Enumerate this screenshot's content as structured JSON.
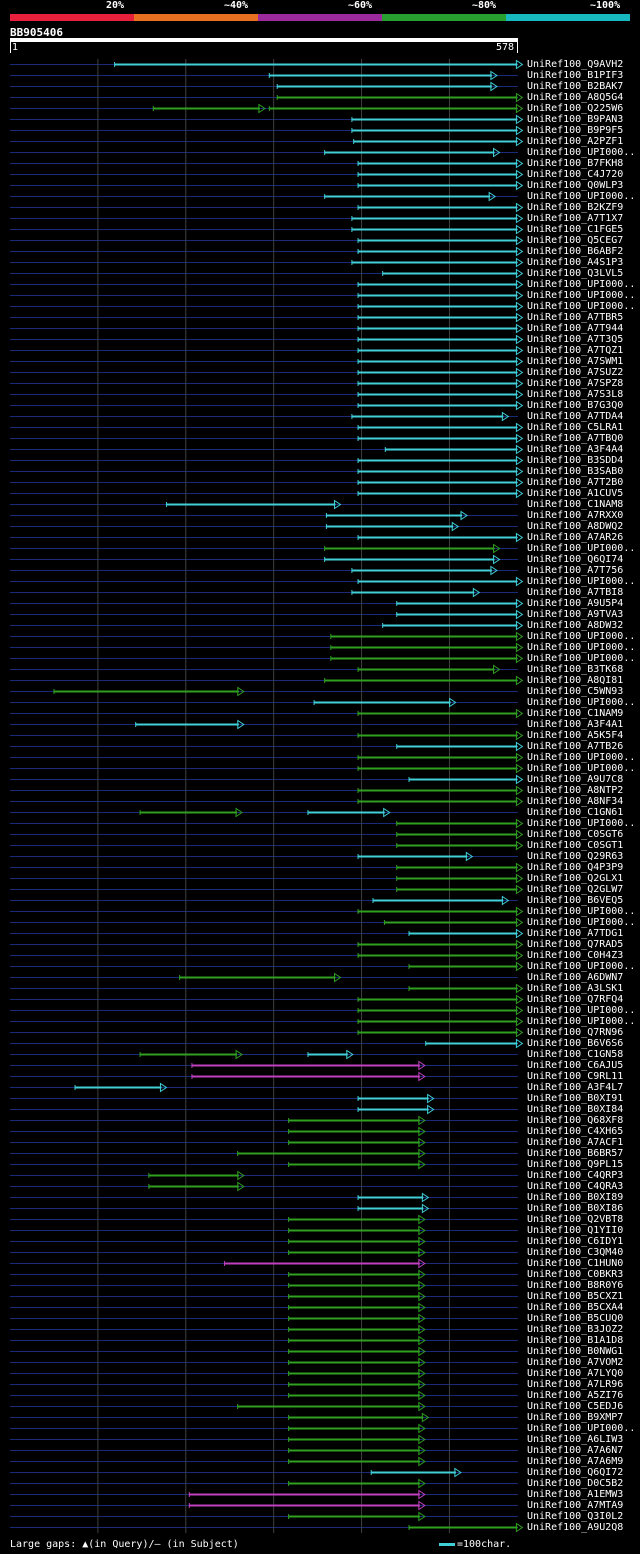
{
  "legend": {
    "items": [
      {
        "label": "20%",
        "color": "#e8203c"
      },
      {
        "label": "~40%",
        "color": "#e87020"
      },
      {
        "label": "~60%",
        "color": "#9c2a9c"
      },
      {
        "label": "~80%",
        "color": "#28a030"
      },
      {
        "label": "~100%",
        "color": "#18b8c0"
      }
    ]
  },
  "query": {
    "id": "BB905406",
    "start_label": "1",
    "end_label": "578",
    "length": 578
  },
  "colors": {
    "cyan": "#40d0d8",
    "green": "#30a020",
    "magenta": "#c040c0",
    "track": "#1a2a7a",
    "grid": "#404040"
  },
  "grid_positions": [
    100,
    200,
    300,
    400,
    500
  ],
  "footer": {
    "gaps_text": "Large gaps: ▲(in Query)/— (in Subject)",
    "scale_text": "=100char."
  },
  "hits": [
    {
      "name": "UniRef100_Q9AVH2",
      "segs": [
        [
          119,
          583,
          "c"
        ]
      ]
    },
    {
      "name": "UniRef100_B1PIF3",
      "segs": [
        [
          295,
          554,
          "c"
        ]
      ]
    },
    {
      "name": "UniRef100_B2BAK7",
      "segs": [
        [
          304,
          554,
          "c"
        ]
      ]
    },
    {
      "name": "UniRef100_A8Q5G4",
      "segs": [
        [
          304,
          583,
          "g"
        ]
      ]
    },
    {
      "name": "UniRef100_Q225W6",
      "segs": [
        [
          163,
          290,
          "g"
        ],
        [
          295,
          583,
          "g"
        ]
      ]
    },
    {
      "name": "UniRef100_B9PAN3",
      "segs": [
        [
          389,
          583,
          "c"
        ]
      ]
    },
    {
      "name": "UniRef100_B9P9F5",
      "segs": [
        [
          389,
          583,
          "c"
        ]
      ]
    },
    {
      "name": "UniRef100_A2PZF1",
      "segs": [
        [
          391,
          583,
          "c"
        ]
      ]
    },
    {
      "name": "UniRef100_UPI000..",
      "segs": [
        [
          358,
          557,
          "c"
        ]
      ]
    },
    {
      "name": "UniRef100_B7FKH8",
      "segs": [
        [
          396,
          583,
          "c"
        ]
      ]
    },
    {
      "name": "UniRef100_C4J720",
      "segs": [
        [
          396,
          583,
          "c"
        ]
      ]
    },
    {
      "name": "UniRef100_Q0WLP3",
      "segs": [
        [
          396,
          583,
          "c"
        ]
      ]
    },
    {
      "name": "UniRef100_UPI000..",
      "segs": [
        [
          358,
          552,
          "c"
        ]
      ]
    },
    {
      "name": "UniRef100_B2KZF9",
      "segs": [
        [
          396,
          583,
          "c"
        ]
      ]
    },
    {
      "name": "UniRef100_A7T1X7",
      "segs": [
        [
          389,
          583,
          "c"
        ]
      ]
    },
    {
      "name": "UniRef100_C1FGE5",
      "segs": [
        [
          389,
          583,
          "c"
        ]
      ]
    },
    {
      "name": "UniRef100_Q5CEG7",
      "segs": [
        [
          396,
          583,
          "c"
        ]
      ]
    },
    {
      "name": "UniRef100_B6ABF2",
      "segs": [
        [
          396,
          583,
          "c"
        ]
      ]
    },
    {
      "name": "UniRef100_A4S1P3",
      "segs": [
        [
          389,
          583,
          "c"
        ]
      ]
    },
    {
      "name": "UniRef100_Q3LVL5",
      "segs": [
        [
          424,
          583,
          "c"
        ]
      ]
    },
    {
      "name": "UniRef100_UPI000..",
      "segs": [
        [
          396,
          583,
          "c"
        ]
      ]
    },
    {
      "name": "UniRef100_UPI000..",
      "segs": [
        [
          396,
          583,
          "c"
        ]
      ]
    },
    {
      "name": "UniRef100_UPI000..",
      "segs": [
        [
          396,
          583,
          "c"
        ]
      ]
    },
    {
      "name": "UniRef100_A7TBR5",
      "segs": [
        [
          396,
          583,
          "c"
        ]
      ]
    },
    {
      "name": "UniRef100_A7T944",
      "segs": [
        [
          396,
          583,
          "c"
        ]
      ]
    },
    {
      "name": "UniRef100_A7T3Q5",
      "segs": [
        [
          396,
          583,
          "c"
        ]
      ]
    },
    {
      "name": "UniRef100_A7TQZ1",
      "segs": [
        [
          396,
          583,
          "c"
        ]
      ]
    },
    {
      "name": "UniRef100_A7SWM1",
      "segs": [
        [
          396,
          583,
          "c"
        ]
      ]
    },
    {
      "name": "UniRef100_A7SUZ2",
      "segs": [
        [
          396,
          583,
          "c"
        ]
      ]
    },
    {
      "name": "UniRef100_A7SPZ8",
      "segs": [
        [
          396,
          583,
          "c"
        ]
      ]
    },
    {
      "name": "UniRef100_A7S3L8",
      "segs": [
        [
          396,
          583,
          "c"
        ]
      ]
    },
    {
      "name": "UniRef100_B7G3Q0",
      "segs": [
        [
          396,
          583,
          "c"
        ]
      ]
    },
    {
      "name": "UniRef100_A7TDA4",
      "segs": [
        [
          389,
          567,
          "c"
        ]
      ]
    },
    {
      "name": "UniRef100_C5LRA1",
      "segs": [
        [
          396,
          583,
          "c"
        ]
      ]
    },
    {
      "name": "UniRef100_A7TBQ0",
      "segs": [
        [
          396,
          583,
          "c"
        ]
      ]
    },
    {
      "name": "UniRef100_A3F4A4",
      "segs": [
        [
          427,
          583,
          "c"
        ]
      ]
    },
    {
      "name": "UniRef100_B3SDD4",
      "segs": [
        [
          396,
          583,
          "c"
        ]
      ]
    },
    {
      "name": "UniRef100_B3SAB0",
      "segs": [
        [
          396,
          583,
          "c"
        ]
      ]
    },
    {
      "name": "UniRef100_A7T2B0",
      "segs": [
        [
          396,
          583,
          "c"
        ]
      ]
    },
    {
      "name": "UniRef100_A1CUV5",
      "segs": [
        [
          396,
          583,
          "c"
        ]
      ]
    },
    {
      "name": "UniRef100_C1NAM8",
      "segs": [
        [
          178,
          376,
          "c"
        ]
      ]
    },
    {
      "name": "UniRef100_A7RXX0",
      "segs": [
        [
          360,
          520,
          "c"
        ]
      ]
    },
    {
      "name": "UniRef100_A8DWQ2",
      "segs": [
        [
          360,
          510,
          "c"
        ]
      ]
    },
    {
      "name": "UniRef100_A7AR26",
      "segs": [
        [
          396,
          583,
          "c"
        ]
      ]
    },
    {
      "name": "UniRef100_UPI000..",
      "segs": [
        [
          358,
          557,
          "g"
        ]
      ]
    },
    {
      "name": "UniRef100_Q6QI74",
      "segs": [
        [
          358,
          557,
          "c"
        ]
      ]
    },
    {
      "name": "UniRef100_A7T756",
      "segs": [
        [
          389,
          554,
          "c"
        ]
      ]
    },
    {
      "name": "UniRef100_UPI000..",
      "segs": [
        [
          396,
          583,
          "c"
        ]
      ]
    },
    {
      "name": "UniRef100_A7TBI8",
      "segs": [
        [
          389,
          534,
          "c"
        ]
      ]
    },
    {
      "name": "UniRef100_A9U5P4",
      "segs": [
        [
          440,
          583,
          "c"
        ]
      ]
    },
    {
      "name": "UniRef100_A9TVA3",
      "segs": [
        [
          440,
          583,
          "c"
        ]
      ]
    },
    {
      "name": "UniRef100_A8DW32",
      "segs": [
        [
          424,
          583,
          "c"
        ]
      ]
    },
    {
      "name": "UniRef100_UPI000..",
      "segs": [
        [
          365,
          583,
          "g"
        ]
      ]
    },
    {
      "name": "UniRef100_UPI000..",
      "segs": [
        [
          365,
          583,
          "g"
        ]
      ]
    },
    {
      "name": "UniRef100_UPI000..",
      "segs": [
        [
          365,
          583,
          "g"
        ]
      ]
    },
    {
      "name": "UniRef100_B3TK68",
      "segs": [
        [
          396,
          557,
          "g"
        ]
      ]
    },
    {
      "name": "UniRef100_A8QI81",
      "segs": [
        [
          358,
          583,
          "g"
        ]
      ]
    },
    {
      "name": "UniRef100_C5WN93",
      "segs": [
        [
          50,
          266,
          "g"
        ]
      ]
    },
    {
      "name": "UniRef100_UPI000..",
      "segs": [
        [
          346,
          507,
          "c"
        ]
      ]
    },
    {
      "name": "UniRef100_C1NAM9",
      "segs": [
        [
          396,
          583,
          "g"
        ]
      ]
    },
    {
      "name": "UniRef100_A3F4A1",
      "segs": [
        [
          143,
          266,
          "c"
        ]
      ]
    },
    {
      "name": "UniRef100_A5K5F4",
      "segs": [
        [
          396,
          583,
          "g"
        ]
      ]
    },
    {
      "name": "UniRef100_A7TB26",
      "segs": [
        [
          440,
          583,
          "c"
        ]
      ]
    },
    {
      "name": "UniRef100_UPI000..",
      "segs": [
        [
          396,
          583,
          "g"
        ]
      ]
    },
    {
      "name": "UniRef100_UPI000..",
      "segs": [
        [
          396,
          583,
          "g"
        ]
      ]
    },
    {
      "name": "UniRef100_A9U7C8",
      "segs": [
        [
          454,
          583,
          "c"
        ]
      ]
    },
    {
      "name": "UniRef100_A8NTP2",
      "segs": [
        [
          396,
          583,
          "g"
        ]
      ]
    },
    {
      "name": "UniRef100_A8NF34",
      "segs": [
        [
          396,
          583,
          "g"
        ]
      ]
    },
    {
      "name": "UniRef100_C1GN61",
      "segs": [
        [
          148,
          264,
          "g"
        ],
        [
          339,
          432,
          "c"
        ]
      ]
    },
    {
      "name": "UniRef100_UPI000..",
      "segs": [
        [
          440,
          583,
          "g"
        ]
      ]
    },
    {
      "name": "UniRef100_C0SGT6",
      "segs": [
        [
          440,
          583,
          "g"
        ]
      ]
    },
    {
      "name": "UniRef100_C0SGT1",
      "segs": [
        [
          440,
          583,
          "g"
        ]
      ]
    },
    {
      "name": "UniRef100_Q29R63",
      "segs": [
        [
          396,
          526,
          "c"
        ]
      ]
    },
    {
      "name": "UniRef100_Q4P3P9",
      "segs": [
        [
          440,
          583,
          "g"
        ]
      ]
    },
    {
      "name": "UniRef100_Q2GLX1",
      "segs": [
        [
          440,
          583,
          "g"
        ]
      ]
    },
    {
      "name": "UniRef100_Q2GLW7",
      "segs": [
        [
          440,
          583,
          "g"
        ]
      ]
    },
    {
      "name": "UniRef100_B6VEQ5",
      "segs": [
        [
          413,
          567,
          "c"
        ]
      ]
    },
    {
      "name": "UniRef100_UPI000..",
      "segs": [
        [
          396,
          583,
          "g"
        ]
      ]
    },
    {
      "name": "UniRef100_UPI000..",
      "segs": [
        [
          426,
          583,
          "g"
        ]
      ]
    },
    {
      "name": "UniRef100_A7TDG1",
      "segs": [
        [
          454,
          583,
          "c"
        ]
      ]
    },
    {
      "name": "UniRef100_Q7RAD5",
      "segs": [
        [
          396,
          583,
          "g"
        ]
      ]
    },
    {
      "name": "UniRef100_C0H4Z3",
      "segs": [
        [
          396,
          583,
          "g"
        ]
      ]
    },
    {
      "name": "UniRef100_UPI000..",
      "segs": [
        [
          454,
          583,
          "g"
        ]
      ]
    },
    {
      "name": "UniRef100_A6DWN7",
      "segs": [
        [
          193,
          376,
          "g"
        ]
      ]
    },
    {
      "name": "UniRef100_A3LSK1",
      "segs": [
        [
          454,
          583,
          "g"
        ]
      ]
    },
    {
      "name": "UniRef100_Q7RFQ4",
      "segs": [
        [
          396,
          583,
          "g"
        ]
      ]
    },
    {
      "name": "UniRef100_UPI000..",
      "segs": [
        [
          396,
          583,
          "g"
        ]
      ]
    },
    {
      "name": "UniRef100_UPI000..",
      "segs": [
        [
          396,
          583,
          "g"
        ]
      ]
    },
    {
      "name": "UniRef100_Q7RN96",
      "segs": [
        [
          396,
          583,
          "g"
        ]
      ]
    },
    {
      "name": "UniRef100_B6V6S6",
      "segs": [
        [
          473,
          583,
          "c"
        ]
      ]
    },
    {
      "name": "UniRef100_C1GN58",
      "segs": [
        [
          148,
          264,
          "g"
        ],
        [
          339,
          390,
          "c"
        ]
      ]
    },
    {
      "name": "UniRef100_C6AJU5",
      "segs": [
        [
          207,
          472,
          "m"
        ]
      ]
    },
    {
      "name": "UniRef100_C9RL11",
      "segs": [
        [
          207,
          472,
          "m"
        ]
      ]
    },
    {
      "name": "UniRef100_A3F4L7",
      "segs": [
        [
          74,
          178,
          "c"
        ]
      ]
    },
    {
      "name": "UniRef100_B0XI91",
      "segs": [
        [
          396,
          482,
          "c"
        ]
      ]
    },
    {
      "name": "UniRef100_B0XI84",
      "segs": [
        [
          396,
          482,
          "c"
        ]
      ]
    },
    {
      "name": "UniRef100_Q68XF8",
      "segs": [
        [
          317,
          472,
          "g"
        ]
      ]
    },
    {
      "name": "UniRef100_C4XH65",
      "segs": [
        [
          317,
          472,
          "g"
        ]
      ]
    },
    {
      "name": "UniRef100_A7ACF1",
      "segs": [
        [
          317,
          472,
          "g"
        ]
      ]
    },
    {
      "name": "UniRef100_B6BR57",
      "segs": [
        [
          259,
          472,
          "g"
        ]
      ]
    },
    {
      "name": "UniRef100_Q9PL15",
      "segs": [
        [
          317,
          472,
          "g"
        ]
      ]
    },
    {
      "name": "UniRef100_C4QRP3",
      "segs": [
        [
          158,
          266,
          "g"
        ]
      ]
    },
    {
      "name": "UniRef100_C4QRA3",
      "segs": [
        [
          158,
          266,
          "g"
        ]
      ]
    },
    {
      "name": "UniRef100_B0XI89",
      "segs": [
        [
          396,
          476,
          "c"
        ]
      ]
    },
    {
      "name": "UniRef100_B0XI86",
      "segs": [
        [
          396,
          476,
          "c"
        ]
      ]
    },
    {
      "name": "UniRef100_Q2VBT8",
      "segs": [
        [
          317,
          472,
          "g"
        ]
      ]
    },
    {
      "name": "UniRef100_Q1YII0",
      "segs": [
        [
          317,
          472,
          "g"
        ]
      ]
    },
    {
      "name": "UniRef100_C6IDY1",
      "segs": [
        [
          317,
          472,
          "g"
        ]
      ]
    },
    {
      "name": "UniRef100_C3QM40",
      "segs": [
        [
          317,
          472,
          "g"
        ]
      ]
    },
    {
      "name": "UniRef100_C1HUN0",
      "segs": [
        [
          244,
          472,
          "m"
        ]
      ]
    },
    {
      "name": "UniRef100_C0BKR3",
      "segs": [
        [
          317,
          472,
          "g"
        ]
      ]
    },
    {
      "name": "UniRef100_B8R0Y6",
      "segs": [
        [
          317,
          472,
          "g"
        ]
      ]
    },
    {
      "name": "UniRef100_B5CXZ1",
      "segs": [
        [
          317,
          472,
          "g"
        ]
      ]
    },
    {
      "name": "UniRef100_B5CXA4",
      "segs": [
        [
          317,
          472,
          "g"
        ]
      ]
    },
    {
      "name": "UniRef100_B5CUQ0",
      "segs": [
        [
          317,
          472,
          "g"
        ]
      ]
    },
    {
      "name": "UniRef100_B3JOZ2",
      "segs": [
        [
          317,
          472,
          "g"
        ]
      ]
    },
    {
      "name": "UniRef100_B1A1D8",
      "segs": [
        [
          317,
          472,
          "g"
        ]
      ]
    },
    {
      "name": "UniRef100_B0NWG1",
      "segs": [
        [
          317,
          472,
          "g"
        ]
      ]
    },
    {
      "name": "UniRef100_A7VOM2",
      "segs": [
        [
          317,
          472,
          "g"
        ]
      ]
    },
    {
      "name": "UniRef100_A7LYQ0",
      "segs": [
        [
          317,
          472,
          "g"
        ]
      ]
    },
    {
      "name": "UniRef100_A7LR96",
      "segs": [
        [
          317,
          472,
          "g"
        ]
      ]
    },
    {
      "name": "UniRef100_A5ZI76",
      "segs": [
        [
          317,
          472,
          "g"
        ]
      ]
    },
    {
      "name": "UniRef100_C5EDJ6",
      "segs": [
        [
          259,
          472,
          "g"
        ]
      ]
    },
    {
      "name": "UniRef100_B9XMP7",
      "segs": [
        [
          317,
          476,
          "g"
        ]
      ]
    },
    {
      "name": "UniRef100_UPI000..",
      "segs": [
        [
          317,
          472,
          "g"
        ]
      ]
    },
    {
      "name": "UniRef100_A6LIW3",
      "segs": [
        [
          317,
          472,
          "g"
        ]
      ]
    },
    {
      "name": "UniRef100_A7A6N7",
      "segs": [
        [
          317,
          472,
          "g"
        ]
      ]
    },
    {
      "name": "UniRef100_A7A6M9",
      "segs": [
        [
          317,
          472,
          "g"
        ]
      ]
    },
    {
      "name": "UniRef100_Q6QI72",
      "segs": [
        [
          411,
          513,
          "c"
        ]
      ]
    },
    {
      "name": "UniRef100_D0C5B2",
      "segs": [
        [
          317,
          472,
          "g"
        ]
      ]
    },
    {
      "name": "UniRef100_A1EMW3",
      "segs": [
        [
          204,
          472,
          "m"
        ]
      ]
    },
    {
      "name": "UniRef100_A7MTA9",
      "segs": [
        [
          204,
          472,
          "m"
        ]
      ]
    },
    {
      "name": "UniRef100_Q3I0L2",
      "segs": [
        [
          317,
          472,
          "g"
        ]
      ]
    },
    {
      "name": "UniRef100_A9U2Q8",
      "segs": [
        [
          454,
          583,
          "g"
        ]
      ]
    }
  ]
}
